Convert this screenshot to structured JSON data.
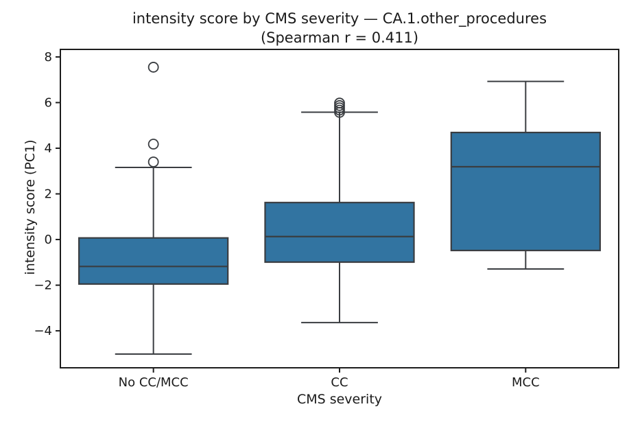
{
  "chart_data": {
    "type": "box",
    "title": "intensity score by CMS severity — CA.1.other_procedures",
    "subtitle": "(Spearman r = 0.411)",
    "spearman_r": 0.411,
    "xlabel": "CMS severity",
    "ylabel": "intensity score (PC1)",
    "categories": [
      "No CC/MCC",
      "CC",
      "MCC"
    ],
    "ylim": [
      -5.62,
      8.33
    ],
    "yticks": {
      "values": [
        8,
        6,
        4,
        2,
        0,
        -2,
        -4
      ],
      "labels": [
        "8",
        "6",
        "4",
        "2",
        "0",
        "−2",
        "−4"
      ]
    },
    "grid": "off",
    "legend": "none",
    "boxes": [
      {
        "category": "No CC/MCC",
        "whisker_low": -5.02,
        "q1": -1.95,
        "median": -1.18,
        "q3": 0.07,
        "whisker_high": 3.16,
        "outliers": [
          3.4,
          4.18,
          7.55
        ]
      },
      {
        "category": "CC",
        "whisker_low": -3.64,
        "q1": -0.99,
        "median": 0.13,
        "q3": 1.62,
        "whisker_high": 5.58,
        "outliers": [
          5.57,
          5.67,
          5.77,
          5.87,
          5.98
        ]
      },
      {
        "category": "MCC",
        "whisker_low": -1.29,
        "q1": -0.48,
        "median": 3.19,
        "q3": 4.69,
        "whisker_high": 6.93,
        "outliers": []
      }
    ],
    "colors": {
      "box_fill": "#3274A1",
      "box_edge": "#3A3D41",
      "whisker": "#3A3D41",
      "outlier_edge": "#3A3D41",
      "spine": "#1C1C1C",
      "text": "#1A1A1A",
      "background": "#FFFFFF"
    }
  }
}
